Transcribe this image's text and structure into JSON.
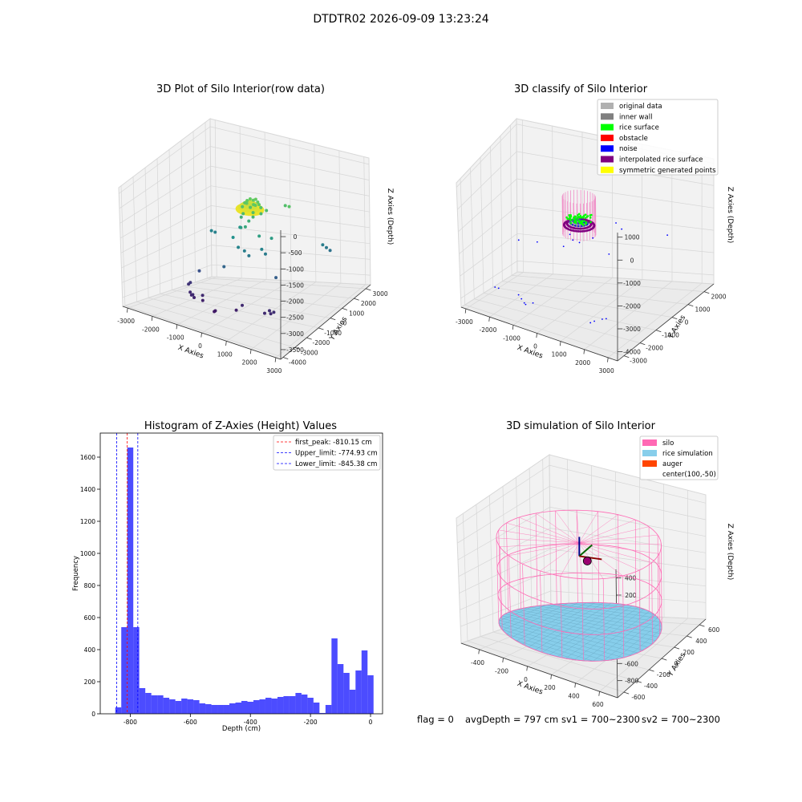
{
  "figure": {
    "suptitle": "DTDTR02 2026-09-09 13:23:24",
    "footer": {
      "flag": "flag = 0",
      "avg": "avgDepth = 797 cm",
      "sv1": "sv1 = 700~2300",
      "sv2": "sv2 = 700~2300"
    }
  },
  "chart_data": [
    {
      "type": "scatter",
      "projection": "3d",
      "title": "3D Plot of Silo Interior(row data)",
      "xlabel": "X Axies",
      "ylabel": "Y Axies",
      "zlabel": "Z Axies (Depth)",
      "xticks": [
        -3000,
        -2000,
        -1000,
        0,
        1000,
        2000,
        3000
      ],
      "yticks": [
        -4000,
        -3000,
        -2000,
        -1000,
        0,
        1000,
        2000,
        3000
      ],
      "zticks": [
        -3500,
        -3000,
        -2500,
        -2000,
        -1500,
        -1000,
        -500,
        0
      ],
      "xlim": [
        -3200,
        3200
      ],
      "ylim": [
        -4200,
        3400
      ],
      "zlim": [
        -3800,
        200
      ],
      "colormap": "viridis",
      "points": [
        [
          -200,
          200,
          -800
        ],
        [
          0,
          300,
          -780
        ],
        [
          200,
          250,
          -790
        ],
        [
          150,
          0,
          -810
        ],
        [
          -100,
          -50,
          -800
        ],
        [
          -250,
          100,
          -850
        ],
        [
          300,
          150,
          -820
        ],
        [
          50,
          400,
          -770
        ],
        [
          -150,
          350,
          -780
        ],
        [
          250,
          -50,
          -800
        ],
        [
          -300,
          0,
          -950
        ],
        [
          -200,
          -150,
          -1100
        ],
        [
          0,
          -100,
          -1300
        ],
        [
          100,
          50,
          -1200
        ],
        [
          200,
          -150,
          -1000
        ],
        [
          -100,
          250,
          -1000
        ],
        [
          300,
          300,
          -950
        ],
        [
          -250,
          -250,
          -1500
        ],
        [
          0,
          -400,
          -1400
        ],
        [
          350,
          200,
          -1100
        ],
        [
          -400,
          100,
          -1300
        ],
        [
          450,
          450,
          -1050
        ],
        [
          -600,
          400,
          -1700
        ],
        [
          -500,
          -400,
          -1800
        ],
        [
          1200,
          800,
          -900
        ],
        [
          900,
          1100,
          -1000
        ],
        [
          1000,
          -300,
          -1600
        ],
        [
          600,
          -500,
          -1550
        ],
        [
          -1800,
          500,
          -2000
        ],
        [
          -1700,
          600,
          -2050
        ],
        [
          -200,
          -600,
          -2000
        ],
        [
          0,
          -500,
          -2100
        ],
        [
          200,
          -550,
          -2200
        ],
        [
          600,
          -300,
          -2000
        ],
        [
          700,
          -200,
          -2150
        ],
        [
          -500,
          -1200,
          -2500
        ],
        [
          1400,
          -800,
          -2600
        ],
        [
          2200,
          1500,
          -2100
        ],
        [
          2300,
          1600,
          -2200
        ],
        [
          2400,
          1700,
          -2300
        ],
        [
          -1800,
          -1500,
          -3200
        ],
        [
          -1750,
          -1450,
          -3150
        ],
        [
          -1500,
          -2000,
          -3300
        ],
        [
          -1400,
          -2100,
          -3350
        ],
        [
          -1200,
          -2300,
          -3350
        ],
        [
          -1300,
          -2200,
          -3300
        ],
        [
          -1000,
          -2000,
          -3300
        ],
        [
          -900,
          -2200,
          -3400
        ],
        [
          -200,
          -2700,
          -3500
        ],
        [
          -180,
          -2650,
          -3480
        ],
        [
          600,
          -2000,
          -3300
        ],
        [
          500,
          -2300,
          -3400
        ],
        [
          1600,
          -2200,
          -3300
        ],
        [
          1700,
          -2000,
          -3250
        ],
        [
          1800,
          -2100,
          -3300
        ],
        [
          1900,
          -2050,
          -3250
        ],
        [
          -1500,
          -1200,
          -2800
        ]
      ]
    },
    {
      "type": "scatter",
      "projection": "3d",
      "title": "3D classify of Silo Interior",
      "xlabel": "X Axies",
      "ylabel": "Y Axies",
      "zlabel": "Z Axies (Depth)",
      "xticks": [
        -3000,
        -2000,
        -1000,
        0,
        1000,
        2000,
        3000
      ],
      "yticks": [
        -3000,
        -2000,
        -1000,
        0,
        1000,
        2000
      ],
      "zticks": [
        -4000,
        -3000,
        -2000,
        -1000,
        0,
        1000
      ],
      "xlim": [
        -3200,
        3400
      ],
      "ylim": [
        -3400,
        2600
      ],
      "zlim": [
        -4400,
        1200
      ],
      "legend": {
        "position": "upper right",
        "entries": [
          {
            "label": "original data",
            "color": "#b0b0b0"
          },
          {
            "label": "inner wall",
            "color": "#808080"
          },
          {
            "label": "rice surface",
            "color": "#00ff00"
          },
          {
            "label": "obstacle",
            "color": "#ff0000"
          },
          {
            "label": "noise",
            "color": "#0000ff"
          },
          {
            "label": "interpolated rice surface",
            "color": "#800080"
          },
          {
            "label": "symmetric generated points",
            "color": "#ffff00"
          }
        ]
      },
      "noise_points": [
        [
          -2600,
          -1400,
          -3900
        ],
        [
          -2500,
          -1300,
          -3950
        ],
        [
          -1600,
          -1600,
          -3900
        ],
        [
          -1400,
          -1800,
          -3950
        ],
        [
          -1200,
          -2000,
          -4000
        ],
        [
          -1100,
          -2100,
          -4000
        ],
        [
          -900,
          -1900,
          -3950
        ],
        [
          1600,
          -2300,
          -3900
        ],
        [
          1700,
          -2200,
          -3850
        ],
        [
          1900,
          -2000,
          -3800
        ],
        [
          2000,
          -1900,
          -3800
        ],
        [
          -200,
          -300,
          -1500
        ],
        [
          0,
          -500,
          -1600
        ],
        [
          200,
          -400,
          -1700
        ],
        [
          -300,
          -600,
          -1900
        ],
        [
          600,
          -200,
          -1500
        ],
        [
          1400,
          -600,
          -1800
        ],
        [
          2400,
          1500,
          -1800
        ],
        [
          -1500,
          -100,
          -2200
        ],
        [
          -2300,
          200,
          -2400
        ],
        [
          900,
          900,
          -1300
        ],
        [
          1200,
          700,
          -1400
        ]
      ]
    },
    {
      "type": "bar",
      "title": "Histogram of Z-Axies (Height) Values",
      "xlabel": "Depth (cm)",
      "ylabel": "Frequency",
      "xlim": [
        -900,
        40
      ],
      "ylim": [
        0,
        1750
      ],
      "xticks": [
        -800,
        -600,
        -400,
        -200,
        0
      ],
      "yticks": [
        0,
        200,
        400,
        600,
        800,
        1000,
        1200,
        1400,
        1600
      ],
      "bin_width": 20,
      "bins": [
        {
          "start": -850,
          "count": 40
        },
        {
          "start": -830,
          "count": 540
        },
        {
          "start": -810,
          "count": 1660
        },
        {
          "start": -790,
          "count": 540
        },
        {
          "start": -770,
          "count": 160
        },
        {
          "start": -750,
          "count": 130
        },
        {
          "start": -730,
          "count": 115
        },
        {
          "start": -710,
          "count": 115
        },
        {
          "start": -690,
          "count": 100
        },
        {
          "start": -670,
          "count": 90
        },
        {
          "start": -650,
          "count": 80
        },
        {
          "start": -630,
          "count": 95
        },
        {
          "start": -610,
          "count": 90
        },
        {
          "start": -590,
          "count": 85
        },
        {
          "start": -570,
          "count": 65
        },
        {
          "start": -550,
          "count": 60
        },
        {
          "start": -530,
          "count": 55
        },
        {
          "start": -510,
          "count": 55
        },
        {
          "start": -490,
          "count": 55
        },
        {
          "start": -470,
          "count": 65
        },
        {
          "start": -450,
          "count": 70
        },
        {
          "start": -430,
          "count": 80
        },
        {
          "start": -410,
          "count": 75
        },
        {
          "start": -390,
          "count": 85
        },
        {
          "start": -370,
          "count": 90
        },
        {
          "start": -350,
          "count": 100
        },
        {
          "start": -330,
          "count": 95
        },
        {
          "start": -310,
          "count": 105
        },
        {
          "start": -290,
          "count": 110
        },
        {
          "start": -270,
          "count": 110
        },
        {
          "start": -250,
          "count": 130
        },
        {
          "start": -230,
          "count": 120
        },
        {
          "start": -210,
          "count": 100
        },
        {
          "start": -190,
          "count": 70
        },
        {
          "start": -170,
          "count": 5
        },
        {
          "start": -150,
          "count": 55
        },
        {
          "start": -130,
          "count": 470
        },
        {
          "start": -110,
          "count": 310
        },
        {
          "start": -90,
          "count": 255
        },
        {
          "start": -70,
          "count": 150
        },
        {
          "start": -50,
          "count": 270
        },
        {
          "start": -30,
          "count": 395
        },
        {
          "start": -10,
          "count": 240
        }
      ],
      "bar_color": "#0000ff",
      "vlines": [
        {
          "label": "first_peak: -810.15 cm",
          "x": -810.15,
          "color": "#ff0000"
        },
        {
          "label": "Upper_limit: -774.93 cm",
          "x": -774.93,
          "color": "#0000ff"
        },
        {
          "label": "Lower_limit: -845.38 cm",
          "x": -845.38,
          "color": "#0000ff"
        }
      ]
    },
    {
      "type": "scatter",
      "projection": "3d",
      "title": "3D simulation of Silo Interior",
      "xlabel": "X Axies",
      "ylabel": "Y Axies",
      "zlabel": "Z Axies (Depth)",
      "xticks": [
        -400,
        -200,
        0,
        200,
        400,
        600
      ],
      "yticks": [
        -600,
        -400,
        -200,
        0,
        200,
        400,
        600
      ],
      "zticks": [
        -800,
        -600,
        -400,
        -200,
        0,
        200,
        400
      ],
      "xlim": [
        -550,
        750
      ],
      "ylim": [
        -700,
        700
      ],
      "zlim": [
        -1000,
        500
      ],
      "center": [
        100,
        -50
      ],
      "silo_radius": 600,
      "silo_top": 150,
      "rice_depth": -810,
      "legend": {
        "position": "upper right",
        "entries": [
          {
            "label": "silo",
            "color": "#ff69b4"
          },
          {
            "label": "rice simulation",
            "color": "#87ceeb"
          },
          {
            "label": "auger",
            "color": "#ff4500"
          },
          {
            "label": "center(100,-50)",
            "color": ""
          }
        ]
      }
    }
  ]
}
